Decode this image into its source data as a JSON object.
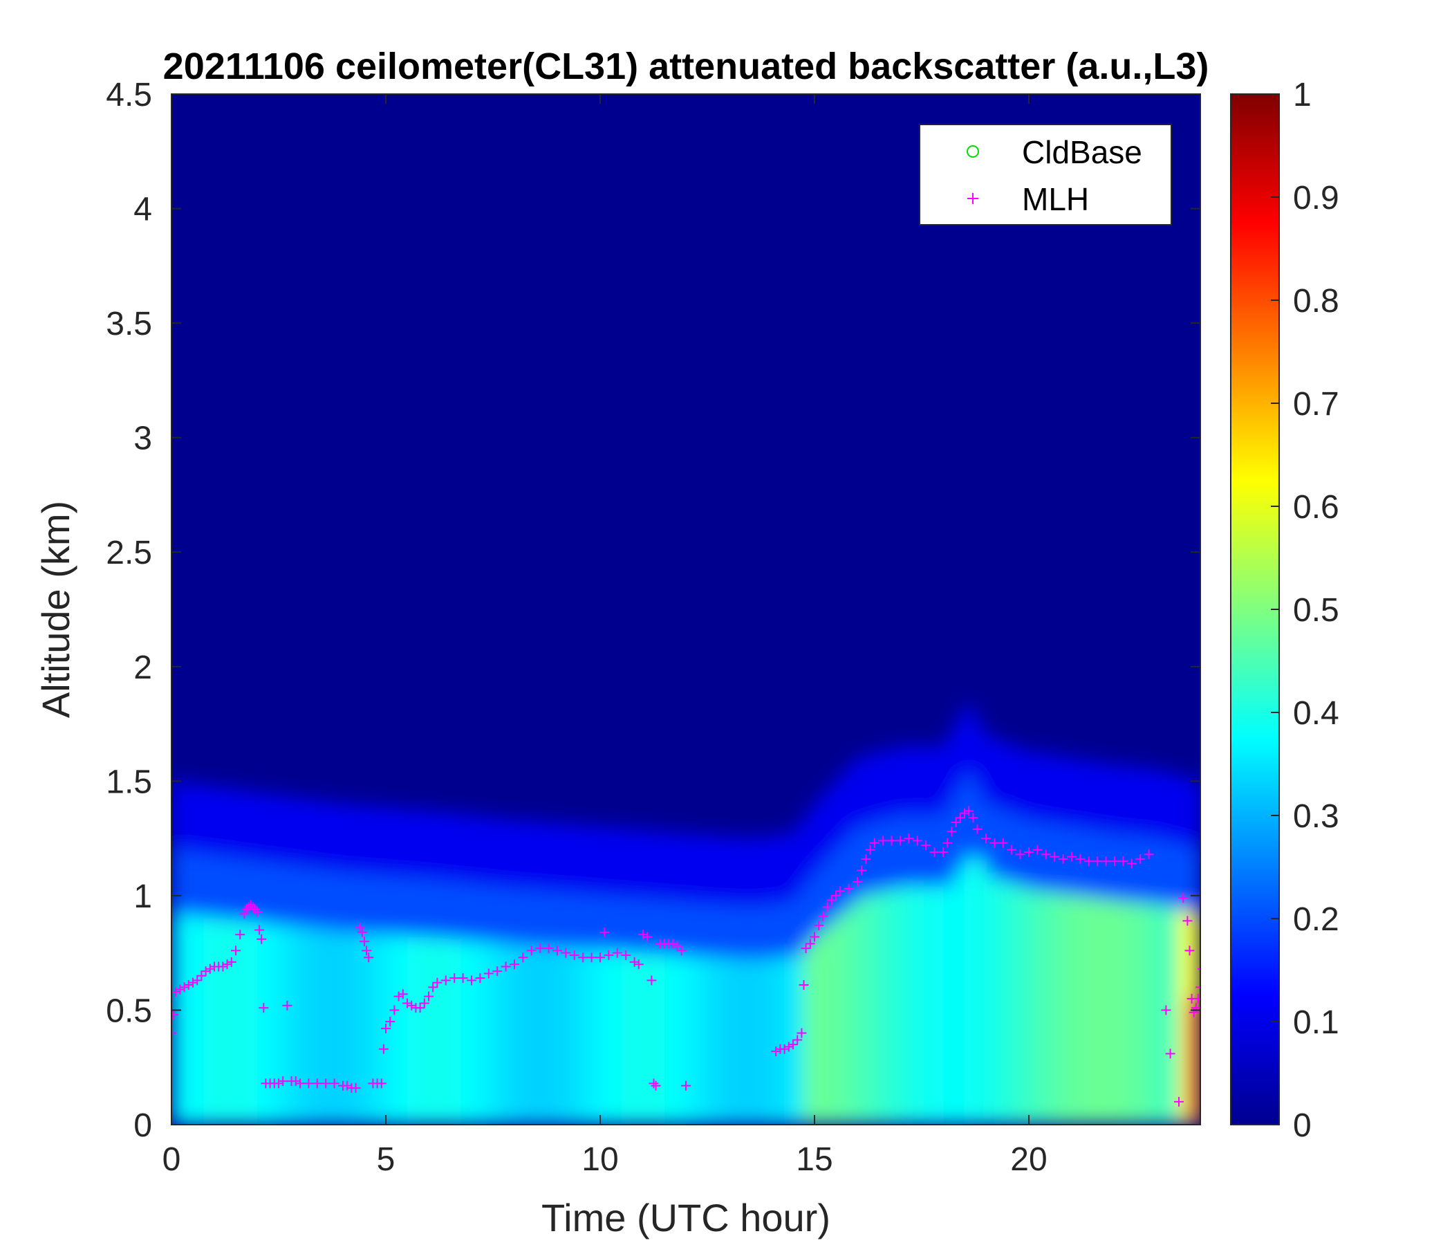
{
  "chart_data": {
    "type": "heatmap",
    "title": "20211106 ceilometer(CL31) attenuated backscatter (a.u.,L3)",
    "xlabel": "Time (UTC hour)",
    "ylabel": "Altitude (km)",
    "xlim": [
      0,
      24
    ],
    "ylim": [
      0,
      4.5
    ],
    "xticks": [
      "0",
      "5",
      "10",
      "15",
      "20"
    ],
    "xtick_values": [
      0,
      5,
      10,
      15,
      20
    ],
    "yticks": [
      "0",
      "0.5",
      "1",
      "1.5",
      "2",
      "2.5",
      "3",
      "3.5",
      "4",
      "4.5"
    ],
    "ytick_values": [
      0,
      0.5,
      1,
      1.5,
      2,
      2.5,
      3,
      3.5,
      4,
      4.5
    ],
    "colorbar": {
      "colormap": "jet",
      "range": [
        0,
        1
      ],
      "ticks": [
        "0",
        "0.1",
        "0.2",
        "0.3",
        "0.4",
        "0.5",
        "0.6",
        "0.7",
        "0.8",
        "0.9",
        "1"
      ],
      "tick_values": [
        0,
        0.1,
        0.2,
        0.3,
        0.4,
        0.5,
        0.6,
        0.7,
        0.8,
        0.9,
        1.0
      ]
    },
    "legend": {
      "placement": "top-right",
      "entries": [
        {
          "label": "CldBase",
          "marker": "circle",
          "color": "#00dd00"
        },
        {
          "label": "MLH",
          "marker": "plus",
          "color": "#ff00ff"
        }
      ]
    },
    "aerosol_layer_top_km": [
      [
        0,
        1.15
      ],
      [
        2,
        1.1
      ],
      [
        4,
        1.05
      ],
      [
        6,
        1.02
      ],
      [
        8,
        0.98
      ],
      [
        10,
        0.95
      ],
      [
        12,
        0.92
      ],
      [
        13.5,
        0.9
      ],
      [
        14.5,
        0.92
      ],
      [
        15,
        1.05
      ],
      [
        15.5,
        1.15
      ],
      [
        16,
        1.25
      ],
      [
        17,
        1.3
      ],
      [
        18,
        1.3
      ],
      [
        18.6,
        1.5
      ],
      [
        19,
        1.35
      ],
      [
        20,
        1.28
      ],
      [
        21,
        1.25
      ],
      [
        22,
        1.22
      ],
      [
        23,
        1.2
      ],
      [
        24,
        1.15
      ]
    ],
    "series": [
      {
        "name": "MLH",
        "marker": "plus",
        "color": "#ff00ff",
        "points": [
          [
            0.0,
            0.4
          ],
          [
            0.05,
            0.48
          ],
          [
            0.1,
            0.58
          ],
          [
            0.2,
            0.59
          ],
          [
            0.3,
            0.6
          ],
          [
            0.4,
            0.61
          ],
          [
            0.5,
            0.62
          ],
          [
            0.6,
            0.63
          ],
          [
            0.7,
            0.65
          ],
          [
            0.8,
            0.67
          ],
          [
            0.9,
            0.68
          ],
          [
            1.0,
            0.69
          ],
          [
            1.1,
            0.69
          ],
          [
            1.2,
            0.69
          ],
          [
            1.3,
            0.7
          ],
          [
            1.4,
            0.71
          ],
          [
            1.5,
            0.76
          ],
          [
            1.6,
            0.83
          ],
          [
            1.7,
            0.92
          ],
          [
            1.75,
            0.94
          ],
          [
            1.8,
            0.95
          ],
          [
            1.85,
            0.96
          ],
          [
            1.9,
            0.95
          ],
          [
            1.95,
            0.94
          ],
          [
            2.0,
            0.93
          ],
          [
            2.05,
            0.85
          ],
          [
            2.1,
            0.81
          ],
          [
            2.15,
            0.51
          ],
          [
            2.2,
            0.18
          ],
          [
            2.3,
            0.18
          ],
          [
            2.4,
            0.18
          ],
          [
            2.5,
            0.18
          ],
          [
            2.6,
            0.19
          ],
          [
            2.7,
            0.52
          ],
          [
            2.8,
            0.19
          ],
          [
            2.9,
            0.19
          ],
          [
            3.0,
            0.18
          ],
          [
            3.2,
            0.18
          ],
          [
            3.4,
            0.18
          ],
          [
            3.6,
            0.18
          ],
          [
            3.8,
            0.18
          ],
          [
            4.0,
            0.17
          ],
          [
            4.1,
            0.17
          ],
          [
            4.2,
            0.16
          ],
          [
            4.3,
            0.16
          ],
          [
            4.4,
            0.86
          ],
          [
            4.45,
            0.84
          ],
          [
            4.5,
            0.8
          ],
          [
            4.55,
            0.76
          ],
          [
            4.6,
            0.73
          ],
          [
            4.7,
            0.18
          ],
          [
            4.8,
            0.18
          ],
          [
            4.9,
            0.18
          ],
          [
            4.95,
            0.33
          ],
          [
            5.0,
            0.42
          ],
          [
            5.1,
            0.45
          ],
          [
            5.2,
            0.5
          ],
          [
            5.3,
            0.56
          ],
          [
            5.4,
            0.57
          ],
          [
            5.5,
            0.53
          ],
          [
            5.6,
            0.52
          ],
          [
            5.7,
            0.51
          ],
          [
            5.8,
            0.51
          ],
          [
            5.9,
            0.53
          ],
          [
            6.0,
            0.56
          ],
          [
            6.1,
            0.6
          ],
          [
            6.2,
            0.62
          ],
          [
            6.4,
            0.63
          ],
          [
            6.6,
            0.64
          ],
          [
            6.8,
            0.64
          ],
          [
            7.0,
            0.63
          ],
          [
            7.2,
            0.64
          ],
          [
            7.4,
            0.66
          ],
          [
            7.6,
            0.67
          ],
          [
            7.8,
            0.69
          ],
          [
            8.0,
            0.7
          ],
          [
            8.2,
            0.73
          ],
          [
            8.4,
            0.76
          ],
          [
            8.6,
            0.77
          ],
          [
            8.8,
            0.77
          ],
          [
            9.0,
            0.76
          ],
          [
            9.2,
            0.75
          ],
          [
            9.4,
            0.74
          ],
          [
            9.6,
            0.73
          ],
          [
            9.8,
            0.73
          ],
          [
            10.0,
            0.73
          ],
          [
            10.1,
            0.84
          ],
          [
            10.2,
            0.74
          ],
          [
            10.4,
            0.75
          ],
          [
            10.6,
            0.74
          ],
          [
            10.8,
            0.71
          ],
          [
            10.9,
            0.7
          ],
          [
            11.0,
            0.83
          ],
          [
            11.1,
            0.82
          ],
          [
            11.2,
            0.63
          ],
          [
            11.25,
            0.18
          ],
          [
            11.3,
            0.17
          ],
          [
            11.4,
            0.79
          ],
          [
            11.5,
            0.79
          ],
          [
            11.6,
            0.79
          ],
          [
            11.7,
            0.79
          ],
          [
            11.8,
            0.78
          ],
          [
            11.9,
            0.76
          ],
          [
            12.0,
            0.17
          ],
          [
            14.1,
            0.32
          ],
          [
            14.2,
            0.33
          ],
          [
            14.3,
            0.33
          ],
          [
            14.4,
            0.34
          ],
          [
            14.5,
            0.35
          ],
          [
            14.6,
            0.37
          ],
          [
            14.7,
            0.4
          ],
          [
            14.75,
            0.61
          ],
          [
            14.8,
            0.77
          ],
          [
            14.9,
            0.79
          ],
          [
            15.0,
            0.82
          ],
          [
            15.1,
            0.87
          ],
          [
            15.2,
            0.91
          ],
          [
            15.3,
            0.95
          ],
          [
            15.4,
            0.98
          ],
          [
            15.5,
            1.0
          ],
          [
            15.6,
            1.02
          ],
          [
            15.8,
            1.03
          ],
          [
            16.0,
            1.06
          ],
          [
            16.1,
            1.11
          ],
          [
            16.2,
            1.16
          ],
          [
            16.3,
            1.2
          ],
          [
            16.4,
            1.23
          ],
          [
            16.6,
            1.24
          ],
          [
            16.8,
            1.24
          ],
          [
            17.0,
            1.24
          ],
          [
            17.2,
            1.25
          ],
          [
            17.4,
            1.24
          ],
          [
            17.6,
            1.22
          ],
          [
            17.8,
            1.19
          ],
          [
            18.0,
            1.19
          ],
          [
            18.1,
            1.23
          ],
          [
            18.2,
            1.28
          ],
          [
            18.3,
            1.32
          ],
          [
            18.4,
            1.34
          ],
          [
            18.5,
            1.36
          ],
          [
            18.6,
            1.37
          ],
          [
            18.7,
            1.34
          ],
          [
            18.8,
            1.29
          ],
          [
            19.0,
            1.25
          ],
          [
            19.2,
            1.23
          ],
          [
            19.4,
            1.23
          ],
          [
            19.6,
            1.2
          ],
          [
            19.8,
            1.18
          ],
          [
            20.0,
            1.19
          ],
          [
            20.2,
            1.2
          ],
          [
            20.4,
            1.18
          ],
          [
            20.6,
            1.17
          ],
          [
            20.8,
            1.16
          ],
          [
            21.0,
            1.17
          ],
          [
            21.2,
            1.16
          ],
          [
            21.4,
            1.15
          ],
          [
            21.6,
            1.15
          ],
          [
            21.8,
            1.15
          ],
          [
            22.0,
            1.15
          ],
          [
            22.2,
            1.15
          ],
          [
            22.4,
            1.14
          ],
          [
            22.6,
            1.16
          ],
          [
            22.8,
            1.18
          ],
          [
            23.2,
            0.5
          ],
          [
            23.3,
            0.31
          ],
          [
            23.5,
            0.1
          ],
          [
            23.6,
            0.99
          ],
          [
            23.7,
            0.89
          ],
          [
            23.75,
            0.76
          ],
          [
            23.8,
            0.55
          ],
          [
            23.85,
            0.49
          ],
          [
            23.9,
            0.51
          ],
          [
            23.95,
            0.55
          ],
          [
            24.0,
            0.6
          ],
          [
            24.05,
            0.68
          ]
        ]
      },
      {
        "name": "CldBase",
        "marker": "circle",
        "color": "#00dd00",
        "points": []
      }
    ]
  }
}
